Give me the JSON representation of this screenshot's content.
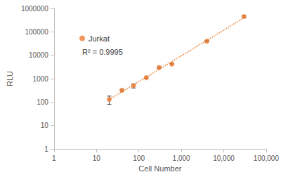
{
  "chart_data": {
    "type": "scatter",
    "x_label": "Cell Number",
    "y_label": "RLU",
    "log": true,
    "grid": false,
    "legend": "upper left",
    "annotations": [
      "R² = 0.9995"
    ],
    "xlim": [
      1,
      100000
    ],
    "xticks": [
      1,
      10,
      100,
      {
        "value": 1000,
        "label": "1,000"
      },
      {
        "value": 10000,
        "label": "10,000"
      },
      {
        "value": 100000,
        "label": "100,000"
      }
    ],
    "ylim": [
      1,
      1000000
    ],
    "yticks": [
      1,
      10,
      100,
      1000,
      10000,
      100000,
      1000000
    ],
    "series": [
      {
        "name": "Jurkat",
        "color": "#ed7d31",
        "marker": "circle",
        "line_style": "dotted",
        "x": [
          20,
          40,
          75,
          150,
          300,
          600,
          4000,
          30000
        ],
        "values": [
          130,
          320,
          500,
          1100,
          3000,
          4200,
          40000,
          450000
        ],
        "errors": [
          50,
          30,
          100,
          80,
          200,
          300,
          3000,
          30000
        ]
      }
    ]
  }
}
